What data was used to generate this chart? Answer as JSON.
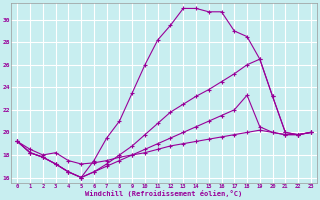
{
  "xlabel": "Windchill (Refroidissement éolien,°C)",
  "bg_color": "#c8eef0",
  "line_color": "#990099",
  "grid_color": "#ffffff",
  "xlim": [
    -0.5,
    23.5
  ],
  "ylim": [
    15.5,
    31.5
  ],
  "xticks": [
    0,
    1,
    2,
    3,
    4,
    5,
    6,
    7,
    8,
    9,
    10,
    11,
    12,
    13,
    14,
    15,
    16,
    17,
    18,
    19,
    20,
    21,
    22,
    23
  ],
  "yticks": [
    16,
    18,
    20,
    22,
    24,
    26,
    28,
    30
  ],
  "series": [
    {
      "x": [
        0,
        1,
        2,
        3,
        4,
        5,
        6,
        7,
        8,
        9,
        10,
        11,
        12,
        13,
        14,
        15,
        16,
        17,
        18,
        19,
        20,
        21,
        22,
        23
      ],
      "y": [
        19.2,
        18.2,
        17.8,
        17.2,
        16.5,
        16.0,
        17.5,
        19.5,
        21.0,
        23.5,
        26.0,
        28.2,
        29.5,
        31.0,
        31.0,
        30.7,
        30.7,
        29.0,
        28.5,
        26.5,
        23.2,
        20.0,
        19.8,
        20.0
      ]
    },
    {
      "x": [
        0,
        1,
        2,
        3,
        4,
        5,
        6,
        7,
        8,
        9,
        10,
        11,
        12,
        13,
        14,
        15,
        16,
        17,
        18,
        19,
        20,
        21,
        22,
        23
      ],
      "y": [
        19.2,
        18.2,
        17.8,
        17.2,
        16.5,
        16.0,
        16.5,
        17.2,
        18.0,
        18.8,
        19.8,
        20.8,
        21.8,
        22.5,
        23.2,
        23.8,
        24.5,
        25.2,
        26.0,
        26.5,
        23.2,
        20.0,
        19.8,
        20.0
      ]
    },
    {
      "x": [
        0,
        1,
        2,
        3,
        4,
        5,
        6,
        7,
        8,
        9,
        10,
        11,
        12,
        13,
        14,
        15,
        16,
        17,
        18,
        19,
        20,
        21,
        22,
        23
      ],
      "y": [
        19.2,
        18.2,
        17.8,
        17.2,
        16.5,
        16.0,
        16.5,
        17.0,
        17.5,
        18.0,
        18.5,
        19.0,
        19.5,
        20.0,
        20.5,
        21.0,
        21.5,
        22.0,
        23.3,
        20.5,
        20.0,
        19.8,
        19.8,
        20.0
      ]
    },
    {
      "x": [
        0,
        1,
        2,
        3,
        4,
        5,
        6,
        7,
        8,
        9,
        10,
        11,
        12,
        13,
        14,
        15,
        16,
        17,
        18,
        19,
        20,
        21,
        22,
        23
      ],
      "y": [
        19.2,
        18.5,
        18.0,
        18.2,
        17.5,
        17.2,
        17.3,
        17.5,
        17.8,
        18.0,
        18.2,
        18.5,
        18.8,
        19.0,
        19.2,
        19.4,
        19.6,
        19.8,
        20.0,
        20.2,
        20.0,
        19.8,
        19.8,
        20.0
      ]
    }
  ]
}
